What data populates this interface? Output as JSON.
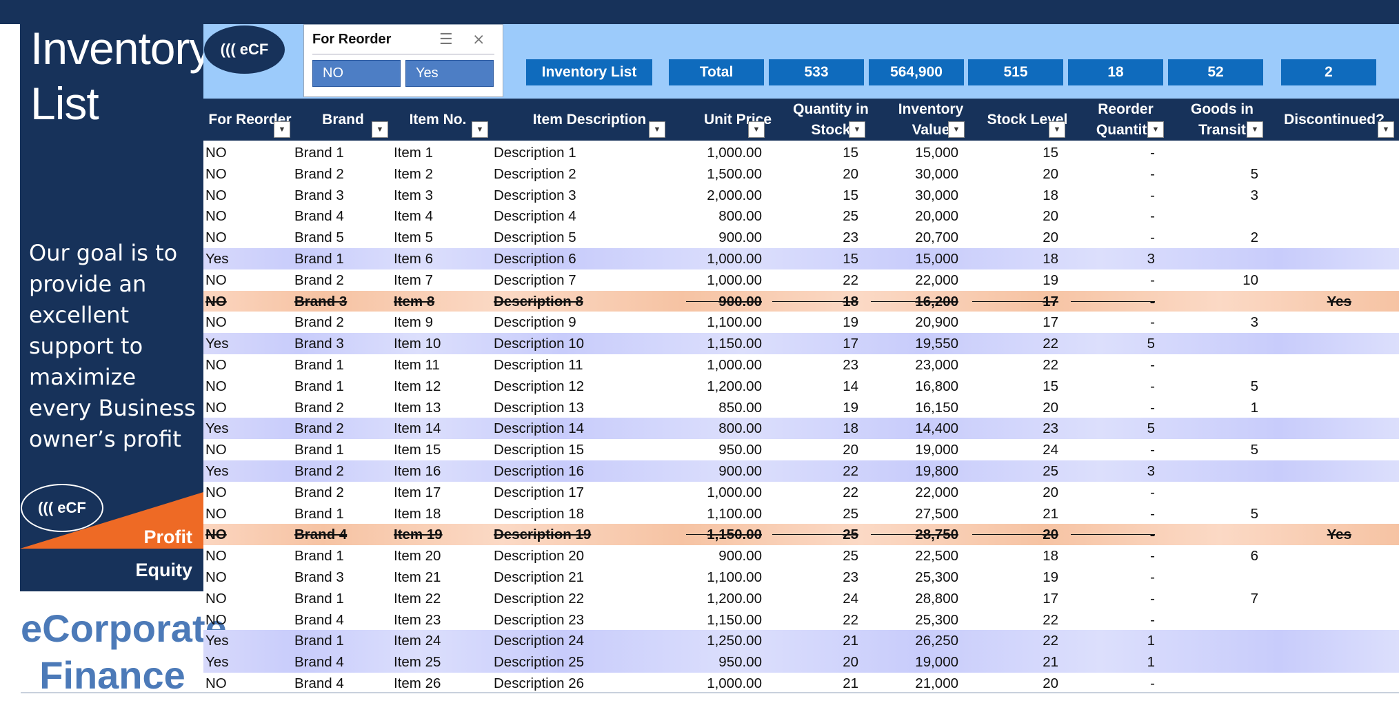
{
  "sidebar": {
    "title_line1": "Inventory",
    "title_line2": "List",
    "goal": "Our goal is to provide an excellent support to maximize every Business owner’s profit",
    "logo": "((( eCF",
    "profit": "Profit",
    "equity": "Equity",
    "brand_line1": "eCorporate",
    "brand_line2": "Finance"
  },
  "header": {
    "logo": "((( eCF",
    "slicer": {
      "title": "For Reorder",
      "options": [
        "NO",
        "Yes"
      ],
      "multiselect_icon": "multi-select-icon",
      "clear_icon": "clear-filter-icon"
    },
    "summary_label": "Inventory  List",
    "total_label": "Total",
    "totals": [
      "533",
      "564,900",
      "515",
      "18",
      "52",
      "2"
    ]
  },
  "columns": [
    "For Reorder",
    "Brand",
    "Item No.",
    "Item Description",
    "Unit Price",
    "Quantity in Stock",
    "Inventory Value",
    "Stock Level",
    "Reorder Quantity",
    "Goods in Transit",
    "Discontinued?"
  ],
  "rows": [
    {
      "reorder": "NO",
      "brand": "Brand 1",
      "item": "Item 1",
      "desc": "Description 1",
      "price": "1,000.00",
      "qty": "15",
      "value": "15,000",
      "level": "15",
      "reqty": "-",
      "transit": "",
      "disc": "",
      "type": "normal"
    },
    {
      "reorder": "NO",
      "brand": "Brand 2",
      "item": "Item 2",
      "desc": "Description 2",
      "price": "1,500.00",
      "qty": "20",
      "value": "30,000",
      "level": "20",
      "reqty": "-",
      "transit": "5",
      "disc": "",
      "type": "normal"
    },
    {
      "reorder": "NO",
      "brand": "Brand 3",
      "item": "Item 3",
      "desc": "Description 3",
      "price": "2,000.00",
      "qty": "15",
      "value": "30,000",
      "level": "18",
      "reqty": "-",
      "transit": "3",
      "disc": "",
      "type": "normal"
    },
    {
      "reorder": "NO",
      "brand": "Brand 4",
      "item": "Item 4",
      "desc": "Description 4",
      "price": "800.00",
      "qty": "25",
      "value": "20,000",
      "level": "20",
      "reqty": "-",
      "transit": "",
      "disc": "",
      "type": "normal"
    },
    {
      "reorder": "NO",
      "brand": "Brand 5",
      "item": "Item 5",
      "desc": "Description 5",
      "price": "900.00",
      "qty": "23",
      "value": "20,700",
      "level": "20",
      "reqty": "-",
      "transit": "2",
      "disc": "",
      "type": "normal"
    },
    {
      "reorder": "Yes",
      "brand": "Brand 1",
      "item": "Item 6",
      "desc": "Description 6",
      "price": "1,000.00",
      "qty": "15",
      "value": "15,000",
      "level": "18",
      "reqty": "3",
      "transit": "",
      "disc": "",
      "type": "yes"
    },
    {
      "reorder": "NO",
      "brand": "Brand 2",
      "item": "Item 7",
      "desc": "Description 7",
      "price": "1,000.00",
      "qty": "22",
      "value": "22,000",
      "level": "19",
      "reqty": "-",
      "transit": "10",
      "disc": "",
      "type": "normal"
    },
    {
      "reorder": "NO",
      "brand": "Brand 3",
      "item": "Item 8",
      "desc": "Description 8",
      "price": "900.00",
      "qty": "18",
      "value": "16,200",
      "level": "17",
      "reqty": "-",
      "transit": "",
      "disc": "Yes",
      "type": "disc"
    },
    {
      "reorder": "NO",
      "brand": "Brand 2",
      "item": "Item 9",
      "desc": "Description 9",
      "price": "1,100.00",
      "qty": "19",
      "value": "20,900",
      "level": "17",
      "reqty": "-",
      "transit": "3",
      "disc": "",
      "type": "normal"
    },
    {
      "reorder": "Yes",
      "brand": "Brand 3",
      "item": "Item 10",
      "desc": "Description 10",
      "price": "1,150.00",
      "qty": "17",
      "value": "19,550",
      "level": "22",
      "reqty": "5",
      "transit": "",
      "disc": "",
      "type": "yes"
    },
    {
      "reorder": "NO",
      "brand": "Brand 1",
      "item": "Item 11",
      "desc": "Description 11",
      "price": "1,000.00",
      "qty": "23",
      "value": "23,000",
      "level": "22",
      "reqty": "-",
      "transit": "",
      "disc": "",
      "type": "normal"
    },
    {
      "reorder": "NO",
      "brand": "Brand 1",
      "item": "Item 12",
      "desc": "Description 12",
      "price": "1,200.00",
      "qty": "14",
      "value": "16,800",
      "level": "15",
      "reqty": "-",
      "transit": "5",
      "disc": "",
      "type": "normal"
    },
    {
      "reorder": "NO",
      "brand": "Brand 2",
      "item": "Item 13",
      "desc": "Description 13",
      "price": "850.00",
      "qty": "19",
      "value": "16,150",
      "level": "20",
      "reqty": "-",
      "transit": "1",
      "disc": "",
      "type": "normal"
    },
    {
      "reorder": "Yes",
      "brand": "Brand 2",
      "item": "Item 14",
      "desc": "Description 14",
      "price": "800.00",
      "qty": "18",
      "value": "14,400",
      "level": "23",
      "reqty": "5",
      "transit": "",
      "disc": "",
      "type": "yes"
    },
    {
      "reorder": "NO",
      "brand": "Brand 1",
      "item": "Item 15",
      "desc": "Description 15",
      "price": "950.00",
      "qty": "20",
      "value": "19,000",
      "level": "24",
      "reqty": "-",
      "transit": "5",
      "disc": "",
      "type": "normal"
    },
    {
      "reorder": "Yes",
      "brand": "Brand 2",
      "item": "Item 16",
      "desc": "Description 16",
      "price": "900.00",
      "qty": "22",
      "value": "19,800",
      "level": "25",
      "reqty": "3",
      "transit": "",
      "disc": "",
      "type": "yes"
    },
    {
      "reorder": "NO",
      "brand": "Brand 2",
      "item": "Item 17",
      "desc": "Description 17",
      "price": "1,000.00",
      "qty": "22",
      "value": "22,000",
      "level": "20",
      "reqty": "-",
      "transit": "",
      "disc": "",
      "type": "normal"
    },
    {
      "reorder": "NO",
      "brand": "Brand 1",
      "item": "Item 18",
      "desc": "Description 18",
      "price": "1,100.00",
      "qty": "25",
      "value": "27,500",
      "level": "21",
      "reqty": "-",
      "transit": "5",
      "disc": "",
      "type": "normal"
    },
    {
      "reorder": "NO",
      "brand": "Brand 4",
      "item": "Item 19",
      "desc": "Description 19",
      "price": "1,150.00",
      "qty": "25",
      "value": "28,750",
      "level": "20",
      "reqty": "-",
      "transit": "",
      "disc": "Yes",
      "type": "disc"
    },
    {
      "reorder": "NO",
      "brand": "Brand 1",
      "item": "Item 20",
      "desc": "Description 20",
      "price": "900.00",
      "qty": "25",
      "value": "22,500",
      "level": "18",
      "reqty": "-",
      "transit": "6",
      "disc": "",
      "type": "normal"
    },
    {
      "reorder": "NO",
      "brand": "Brand 3",
      "item": "Item 21",
      "desc": "Description 21",
      "price": "1,100.00",
      "qty": "23",
      "value": "25,300",
      "level": "19",
      "reqty": "-",
      "transit": "",
      "disc": "",
      "type": "normal"
    },
    {
      "reorder": "NO",
      "brand": "Brand 1",
      "item": "Item 22",
      "desc": "Description 22",
      "price": "1,200.00",
      "qty": "24",
      "value": "28,800",
      "level": "17",
      "reqty": "-",
      "transit": "7",
      "disc": "",
      "type": "normal"
    },
    {
      "reorder": "NO",
      "brand": "Brand 4",
      "item": "Item 23",
      "desc": "Description 23",
      "price": "1,150.00",
      "qty": "22",
      "value": "25,300",
      "level": "22",
      "reqty": "-",
      "transit": "",
      "disc": "",
      "type": "normal"
    },
    {
      "reorder": "Yes",
      "brand": "Brand 1",
      "item": "Item 24",
      "desc": "Description 24",
      "price": "1,250.00",
      "qty": "21",
      "value": "26,250",
      "level": "22",
      "reqty": "1",
      "transit": "",
      "disc": "",
      "type": "yes"
    },
    {
      "reorder": "Yes",
      "brand": "Brand 4",
      "item": "Item 25",
      "desc": "Description 25",
      "price": "950.00",
      "qty": "20",
      "value": "19,000",
      "level": "21",
      "reqty": "1",
      "transit": "",
      "disc": "",
      "type": "yes"
    },
    {
      "reorder": "NO",
      "brand": "Brand 4",
      "item": "Item 26",
      "desc": "Description 26",
      "price": "1,000.00",
      "qty": "21",
      "value": "21,000",
      "level": "20",
      "reqty": "-",
      "transit": "",
      "disc": "",
      "type": "normal"
    }
  ],
  "colors": {
    "navy": "#17325a",
    "header_band": "#9ccbfb",
    "summary_box": "#0f6bbd",
    "slicer_button": "#4d7ec5",
    "reorder_row": "#c8ccfb",
    "discontinued_row": "#f6c3a3",
    "accent_orange": "#ee6a25",
    "brand_blue": "#4c7ab8"
  }
}
